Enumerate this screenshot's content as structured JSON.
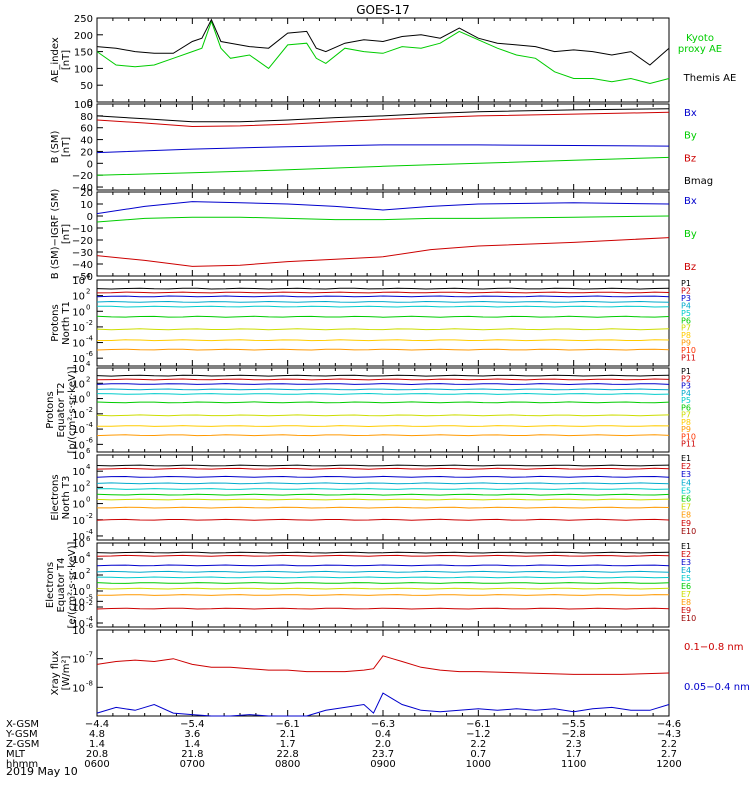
{
  "title": "GOES-17",
  "date_label": "2019 May 10",
  "chart_data": [
    {
      "type": "line",
      "ylabel": [
        "AE_index",
        "[nT]"
      ],
      "ylim": [
        0,
        250
      ],
      "yticks": [
        "0",
        "50",
        "100",
        "150",
        "200",
        "250"
      ],
      "series": [
        {
          "name": "Kyoto proxy AE",
          "color": "#00cc00",
          "legend": [
            "Kyoto",
            "proxy AE"
          ],
          "x": [
            6.0,
            6.2,
            6.4,
            6.6,
            6.8,
            7.0,
            7.1,
            7.2,
            7.3,
            7.4,
            7.6,
            7.8,
            8.0,
            8.2,
            8.3,
            8.4,
            8.6,
            8.8,
            9.0,
            9.2,
            9.4,
            9.6,
            9.8,
            10.0,
            10.2,
            10.4,
            10.6,
            10.8,
            11.0,
            11.2,
            11.4,
            11.6,
            11.8,
            12.0
          ],
          "y": [
            150,
            110,
            105,
            110,
            130,
            150,
            160,
            240,
            160,
            130,
            140,
            100,
            170,
            175,
            130,
            115,
            160,
            150,
            145,
            165,
            160,
            175,
            210,
            185,
            160,
            140,
            130,
            90,
            70,
            70,
            60,
            70,
            55,
            70
          ]
        },
        {
          "name": "Themis AE",
          "color": "#000000",
          "legend": [
            "Themis AE"
          ],
          "x": [
            6.0,
            6.2,
            6.4,
            6.6,
            6.8,
            7.0,
            7.1,
            7.2,
            7.3,
            7.4,
            7.6,
            7.8,
            8.0,
            8.2,
            8.3,
            8.4,
            8.6,
            8.8,
            9.0,
            9.2,
            9.4,
            9.6,
            9.8,
            10.0,
            10.2,
            10.4,
            10.6,
            10.8,
            11.0,
            11.2,
            11.4,
            11.6,
            11.8,
            12.0
          ],
          "y": [
            165,
            160,
            150,
            145,
            145,
            180,
            190,
            245,
            180,
            175,
            165,
            160,
            205,
            210,
            160,
            150,
            175,
            185,
            180,
            195,
            200,
            190,
            220,
            190,
            175,
            170,
            165,
            150,
            155,
            150,
            140,
            150,
            110,
            160
          ]
        }
      ]
    },
    {
      "type": "line",
      "ylabel": [
        "B (SM)",
        "[nT]"
      ],
      "ylim": [
        -45,
        100
      ],
      "yticks": [
        "100",
        "80",
        "60",
        "40",
        "20",
        "0",
        "−20",
        "−40"
      ],
      "ytick_values": [
        100,
        80,
        60,
        40,
        20,
        0,
        -20,
        -40
      ],
      "series": [
        {
          "name": "Bx",
          "color": "#0000cc",
          "x": [
            6,
            7,
            8,
            9,
            10,
            11,
            12
          ],
          "y": [
            18,
            24,
            28,
            31,
            31,
            30,
            29
          ]
        },
        {
          "name": "By",
          "color": "#00cc00",
          "x": [
            6,
            7,
            8,
            9,
            10,
            11,
            12
          ],
          "y": [
            -20,
            -16,
            -11,
            -5,
            0,
            5,
            10
          ]
        },
        {
          "name": "Bz",
          "color": "#cc0000",
          "x": [
            6,
            6.5,
            7,
            7.5,
            8,
            8.5,
            9,
            9.5,
            10,
            11,
            12
          ],
          "y": [
            73,
            68,
            62,
            63,
            66,
            70,
            74,
            77,
            80,
            83,
            86
          ]
        },
        {
          "name": "Bmag",
          "color": "#000000",
          "x": [
            6,
            6.5,
            7,
            7.5,
            8,
            8.5,
            9,
            9.5,
            10,
            11,
            12
          ],
          "y": [
            80,
            75,
            70,
            70,
            73,
            77,
            80,
            84,
            87,
            90,
            92
          ]
        }
      ]
    },
    {
      "type": "line",
      "ylabel": [
        "B (SM)−IGRF (SM)",
        "[nT]"
      ],
      "ylim": [
        -50,
        20
      ],
      "yticks": [
        "20",
        "10",
        "0",
        "−10",
        "−20",
        "−30",
        "−40",
        "−50"
      ],
      "ytick_values": [
        20,
        10,
        0,
        -10,
        -20,
        -30,
        -40,
        -50
      ],
      "series": [
        {
          "name": "Bx",
          "color": "#0000cc",
          "x": [
            6,
            6.5,
            7,
            7.5,
            8,
            8.5,
            9,
            9.5,
            10,
            11,
            12
          ],
          "y": [
            2,
            8,
            12,
            11,
            10,
            8,
            5,
            8,
            10,
            11,
            10
          ]
        },
        {
          "name": "By",
          "color": "#00cc00",
          "x": [
            6,
            6.5,
            7,
            7.5,
            8,
            8.5,
            9,
            9.5,
            10,
            11,
            12
          ],
          "y": [
            -5,
            -2,
            -1,
            -1,
            -2,
            -3,
            -3,
            -2,
            -2,
            -1,
            0
          ]
        },
        {
          "name": "Bz",
          "color": "#cc0000",
          "x": [
            6,
            6.5,
            7,
            7.5,
            8,
            8.5,
            9,
            9.5,
            10,
            11,
            12
          ],
          "y": [
            -33,
            -37,
            -42,
            -41,
            -38,
            -36,
            -34,
            -28,
            -25,
            -22,
            -18
          ]
        }
      ]
    },
    {
      "type": "line",
      "log": true,
      "ylabel": [
        "Protons",
        "North T1"
      ],
      "yticks_exp": [
        4,
        2,
        0,
        -2,
        -4,
        -6
      ],
      "ylim_exp": [
        -7,
        4
      ],
      "series": [
        {
          "name": "P1",
          "color": "#000000",
          "level": 2.9
        },
        {
          "name": "P2",
          "color": "#cc0000",
          "level": 2.4
        },
        {
          "name": "P3",
          "color": "#0000cc",
          "level": 1.9
        },
        {
          "name": "P4",
          "color": "#00aacc",
          "level": 1.2
        },
        {
          "name": "P5",
          "color": "#00cccc",
          "level": 0.6
        },
        {
          "name": "P6",
          "color": "#00cc00",
          "level": -0.7
        },
        {
          "name": "P7",
          "color": "#ccdd00",
          "level": -2.3
        },
        {
          "name": "P8",
          "color": "#ffcc00",
          "level": -3.7
        },
        {
          "name": "P9",
          "color": "#ff9900",
          "level": -4.9
        },
        {
          "name": "P10",
          "color": "#ff3300",
          "level": null
        },
        {
          "name": "P11",
          "color": "#cc0000",
          "level": null
        }
      ]
    },
    {
      "type": "line",
      "log": true,
      "ylabel": [
        "Protons",
        "Equator T2",
        "[p/(cm²·s·sr·keV)]"
      ],
      "yticks_exp": [
        4,
        2,
        0,
        -2,
        -4,
        -6
      ],
      "ylim_exp": [
        -7,
        4
      ],
      "series": [
        {
          "name": "P1",
          "color": "#000000",
          "level": 3.0
        },
        {
          "name": "P2",
          "color": "#cc0000",
          "level": 2.5
        },
        {
          "name": "P3",
          "color": "#0000cc",
          "level": 1.9
        },
        {
          "name": "P4",
          "color": "#00aacc",
          "level": 1.2
        },
        {
          "name": "P5",
          "color": "#00cccc",
          "level": 0.6
        },
        {
          "name": "P6",
          "color": "#00cc00",
          "level": -0.5
        },
        {
          "name": "P7",
          "color": "#ccdd00",
          "level": -2.2
        },
        {
          "name": "P8",
          "color": "#ffcc00",
          "level": -3.6
        },
        {
          "name": "P9",
          "color": "#ff9900",
          "level": -4.8
        },
        {
          "name": "P10",
          "color": "#ff3300",
          "level": null
        },
        {
          "name": "P11",
          "color": "#cc0000",
          "level": null
        }
      ]
    },
    {
      "type": "line",
      "log": true,
      "ylabel": [
        "Electrons",
        "North T3"
      ],
      "yticks_exp": [
        6,
        4,
        2,
        0,
        -2,
        -4
      ],
      "ylim_exp": [
        -4.5,
        6
      ],
      "series": [
        {
          "name": "E1",
          "color": "#000000",
          "level": 4.7
        },
        {
          "name": "E2",
          "color": "#cc0000",
          "level": 4.3
        },
        {
          "name": "E3",
          "color": "#0000cc",
          "level": 3.3
        },
        {
          "name": "E4",
          "color": "#00aacc",
          "level": 2.5
        },
        {
          "name": "E5",
          "color": "#00cccc",
          "level": 1.8
        },
        {
          "name": "E6",
          "color": "#00cc00",
          "level": 1.1
        },
        {
          "name": "E7",
          "color": "#ccdd00",
          "level": 0.5
        },
        {
          "name": "E8",
          "color": "#ff9900",
          "level": -0.5
        },
        {
          "name": "E9",
          "color": "#cc0000",
          "level": -2.0
        },
        {
          "name": "E10",
          "color": "#990000",
          "level": null
        }
      ]
    },
    {
      "type": "line",
      "log": true,
      "ylabel": [
        "Electrons",
        "Equator T4",
        "[e/(cm²·s·sr·keV)]"
      ],
      "yticks_exp": [
        6,
        4,
        2,
        0,
        -2,
        -4
      ],
      "ylim_exp": [
        -4.5,
        6
      ],
      "series": [
        {
          "name": "E1",
          "color": "#000000",
          "level": 4.8
        },
        {
          "name": "E2",
          "color": "#cc0000",
          "level": 4.4
        },
        {
          "name": "E3",
          "color": "#0000cc",
          "level": 3.2
        },
        {
          "name": "E4",
          "color": "#00aacc",
          "level": 2.4
        },
        {
          "name": "E5",
          "color": "#00cccc",
          "level": 1.7
        },
        {
          "name": "E6",
          "color": "#00cc00",
          "level": 1.0
        },
        {
          "name": "E7",
          "color": "#ccdd00",
          "level": 0.3
        },
        {
          "name": "E8",
          "color": "#ff9900",
          "level": -0.5
        },
        {
          "name": "E9",
          "color": "#cc0000",
          "level": -2.2
        },
        {
          "name": "E10",
          "color": "#990000",
          "level": null
        }
      ]
    },
    {
      "type": "line",
      "log": true,
      "ylabel": [
        "Xray flux",
        "[W/m²]"
      ],
      "yticks_exp": [
        -8,
        -7,
        -6,
        -5
      ],
      "ylim_exp": [
        -9,
        -6
      ],
      "series": [
        {
          "name": "0.1−0.8 nm",
          "color": "#cc0000",
          "x": [
            6.0,
            6.2,
            6.4,
            6.6,
            6.8,
            7.0,
            7.2,
            7.4,
            7.6,
            7.8,
            8.0,
            8.2,
            8.4,
            8.6,
            8.8,
            8.9,
            9.0,
            9.1,
            9.2,
            9.4,
            9.6,
            9.8,
            10.0,
            10.5,
            11.0,
            11.5,
            12.0
          ],
          "y": [
            -7.2,
            -7.1,
            -7.05,
            -7.1,
            -7.0,
            -7.2,
            -7.3,
            -7.3,
            -7.35,
            -7.4,
            -7.4,
            -7.45,
            -7.45,
            -7.45,
            -7.4,
            -7.35,
            -6.9,
            -7.0,
            -7.1,
            -7.3,
            -7.4,
            -7.45,
            -7.45,
            -7.5,
            -7.55,
            -7.55,
            -7.5
          ]
        },
        {
          "name": "0.05−0.4 nm",
          "color": "#0000cc",
          "x": [
            6.0,
            6.2,
            6.4,
            6.6,
            6.8,
            7.0,
            7.2,
            7.4,
            7.6,
            7.8,
            8.0,
            8.2,
            8.4,
            8.6,
            8.8,
            8.9,
            9.0,
            9.1,
            9.2,
            9.3,
            9.4,
            9.6,
            9.8,
            10.0,
            10.2,
            10.4,
            10.6,
            10.8,
            11.0,
            11.2,
            11.4,
            11.6,
            11.8,
            12.0
          ],
          "y": [
            -8.9,
            -8.7,
            -8.8,
            -8.6,
            -8.9,
            -8.95,
            -9.0,
            -9.0,
            -8.95,
            -9.0,
            -9.0,
            -9.0,
            -8.8,
            -8.7,
            -8.6,
            -8.9,
            -8.2,
            -8.4,
            -8.6,
            -8.7,
            -8.8,
            -8.85,
            -8.8,
            -8.75,
            -8.8,
            -8.75,
            -8.8,
            -8.75,
            -8.85,
            -8.75,
            -8.7,
            -8.8,
            -8.8,
            -8.6
          ]
        }
      ]
    }
  ],
  "ephemeris": {
    "row_labels": [
      "X-GSM",
      "Y-GSM",
      "Z-GSM",
      "MLT",
      "hhmm"
    ],
    "columns": [
      {
        "x_hour": 6,
        "values": [
          "−4.4",
          "4.8",
          "1.4",
          "20.8",
          "0600"
        ]
      },
      {
        "x_hour": 7,
        "values": [
          "−5.4",
          "3.6",
          "1.4",
          "21.8",
          "0700"
        ]
      },
      {
        "x_hour": 8,
        "values": [
          "−6.1",
          "2.1",
          "1.7",
          "22.8",
          "0800"
        ]
      },
      {
        "x_hour": 9,
        "values": [
          "−6.3",
          "0.4",
          "2.0",
          "23.7",
          "0900"
        ]
      },
      {
        "x_hour": 10,
        "values": [
          "−6.1",
          "−1.2",
          "2.2",
          "0.7",
          "1000"
        ]
      },
      {
        "x_hour": 11,
        "values": [
          "−5.5",
          "−2.8",
          "2.3",
          "1.7",
          "1100"
        ]
      },
      {
        "x_hour": 12,
        "values": [
          "−4.6",
          "−4.3",
          "2.2",
          "2.7",
          "1200"
        ]
      }
    ]
  }
}
